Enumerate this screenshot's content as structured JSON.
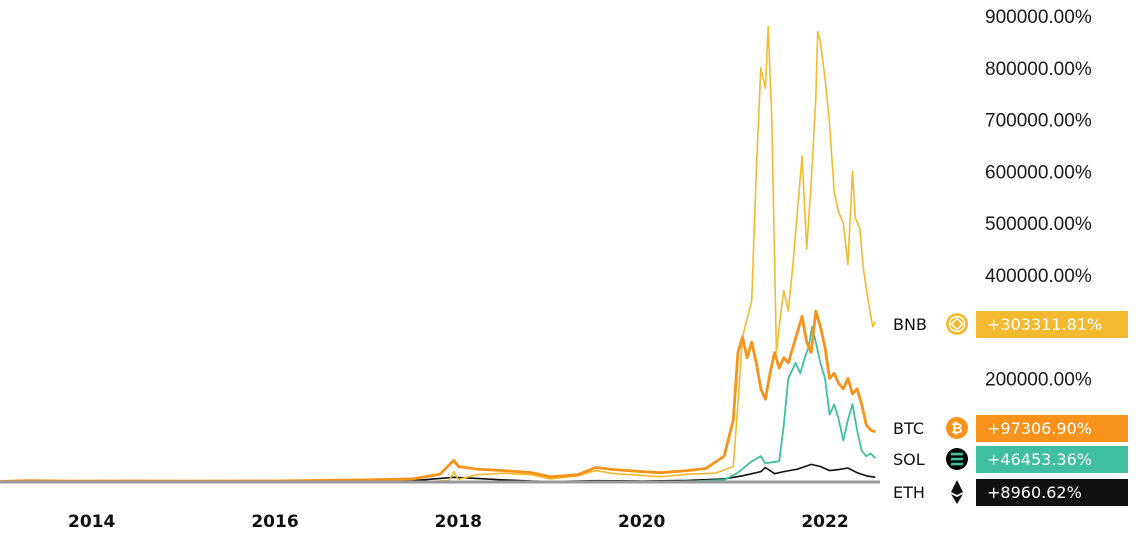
{
  "chart_data": {
    "type": "line",
    "title": "",
    "xlabel": "",
    "ylabel": "",
    "x_range": [
      2013.0,
      2022.6
    ],
    "ylim": [
      0,
      900000
    ],
    "y_ticks": [
      "900000.00%",
      "800000.00%",
      "700000.00%",
      "600000.00%",
      "500000.00%",
      "400000.00%",
      "200000.00%"
    ],
    "y_tick_values": [
      900000,
      800000,
      700000,
      600000,
      500000,
      400000,
      200000
    ],
    "x_ticks": [
      "2014",
      "2016",
      "2018",
      "2020",
      "2022"
    ],
    "x_tick_values": [
      2014,
      2016,
      2018,
      2020,
      2022
    ],
    "grid": false,
    "baseline_color": "#999999",
    "series": [
      {
        "name": "BNB",
        "color": "#f3ba2f",
        "icon": "bnb-icon",
        "end_label": "+303311.81%",
        "points": [
          [
            2017.6,
            0
          ],
          [
            2017.9,
            3000
          ],
          [
            2017.95,
            20000
          ],
          [
            2018.0,
            5000
          ],
          [
            2018.2,
            14000
          ],
          [
            2018.5,
            17000
          ],
          [
            2018.8,
            14000
          ],
          [
            2019.0,
            6000
          ],
          [
            2019.3,
            12000
          ],
          [
            2019.5,
            22000
          ],
          [
            2019.7,
            16000
          ],
          [
            2020.0,
            13000
          ],
          [
            2020.2,
            10000
          ],
          [
            2020.5,
            15000
          ],
          [
            2020.8,
            17000
          ],
          [
            2021.0,
            30000
          ],
          [
            2021.05,
            150000
          ],
          [
            2021.1,
            280000
          ],
          [
            2021.2,
            350000
          ],
          [
            2021.25,
            600000
          ],
          [
            2021.3,
            800000
          ],
          [
            2021.35,
            760000
          ],
          [
            2021.38,
            880000
          ],
          [
            2021.42,
            700000
          ],
          [
            2021.47,
            250000
          ],
          [
            2021.5,
            300000
          ],
          [
            2021.55,
            370000
          ],
          [
            2021.6,
            330000
          ],
          [
            2021.65,
            420000
          ],
          [
            2021.75,
            630000
          ],
          [
            2021.8,
            450000
          ],
          [
            2021.85,
            580000
          ],
          [
            2021.9,
            740000
          ],
          [
            2021.92,
            870000
          ],
          [
            2021.95,
            850000
          ],
          [
            2022.0,
            780000
          ],
          [
            2022.05,
            690000
          ],
          [
            2022.1,
            560000
          ],
          [
            2022.15,
            520000
          ],
          [
            2022.2,
            500000
          ],
          [
            2022.25,
            420000
          ],
          [
            2022.3,
            600000
          ],
          [
            2022.33,
            510000
          ],
          [
            2022.38,
            490000
          ],
          [
            2022.42,
            410000
          ],
          [
            2022.48,
            340000
          ],
          [
            2022.52,
            300000
          ],
          [
            2022.55,
            310000
          ]
        ]
      },
      {
        "name": "BTC",
        "color": "#f7931a",
        "icon": "btc-icon",
        "end_label": "+97306.90%",
        "points": [
          [
            2013.0,
            1000
          ],
          [
            2013.3,
            2500
          ],
          [
            2013.8,
            1500
          ],
          [
            2014.5,
            2000
          ],
          [
            2015.0,
            1500
          ],
          [
            2016.0,
            2000
          ],
          [
            2016.5,
            3000
          ],
          [
            2017.0,
            4000
          ],
          [
            2017.5,
            6000
          ],
          [
            2017.8,
            15000
          ],
          [
            2017.95,
            42000
          ],
          [
            2018.0,
            30000
          ],
          [
            2018.2,
            25000
          ],
          [
            2018.5,
            22000
          ],
          [
            2018.8,
            18000
          ],
          [
            2019.0,
            10000
          ],
          [
            2019.3,
            14000
          ],
          [
            2019.5,
            28000
          ],
          [
            2019.7,
            24000
          ],
          [
            2020.0,
            20000
          ],
          [
            2020.2,
            18000
          ],
          [
            2020.5,
            22000
          ],
          [
            2020.7,
            26000
          ],
          [
            2020.9,
            50000
          ],
          [
            2021.0,
            120000
          ],
          [
            2021.05,
            250000
          ],
          [
            2021.1,
            280000
          ],
          [
            2021.15,
            240000
          ],
          [
            2021.2,
            270000
          ],
          [
            2021.25,
            230000
          ],
          [
            2021.3,
            180000
          ],
          [
            2021.35,
            160000
          ],
          [
            2021.4,
            210000
          ],
          [
            2021.45,
            250000
          ],
          [
            2021.5,
            220000
          ],
          [
            2021.55,
            240000
          ],
          [
            2021.6,
            230000
          ],
          [
            2021.65,
            260000
          ],
          [
            2021.7,
            290000
          ],
          [
            2021.75,
            320000
          ],
          [
            2021.8,
            270000
          ],
          [
            2021.85,
            250000
          ],
          [
            2021.9,
            330000
          ],
          [
            2021.95,
            300000
          ],
          [
            2022.0,
            260000
          ],
          [
            2022.05,
            200000
          ],
          [
            2022.1,
            210000
          ],
          [
            2022.15,
            190000
          ],
          [
            2022.2,
            180000
          ],
          [
            2022.25,
            200000
          ],
          [
            2022.3,
            170000
          ],
          [
            2022.35,
            180000
          ],
          [
            2022.4,
            150000
          ],
          [
            2022.45,
            110000
          ],
          [
            2022.5,
            100000
          ],
          [
            2022.55,
            97000
          ]
        ]
      },
      {
        "name": "SOL",
        "color": "#3fbf9f",
        "icon": "sol-icon",
        "end_label": "+46453.36%",
        "points": [
          [
            2020.3,
            1000
          ],
          [
            2020.6,
            1500
          ],
          [
            2020.9,
            4000
          ],
          [
            2021.05,
            18000
          ],
          [
            2021.2,
            40000
          ],
          [
            2021.3,
            50000
          ],
          [
            2021.35,
            36000
          ],
          [
            2021.42,
            38000
          ],
          [
            2021.5,
            40000
          ],
          [
            2021.55,
            110000
          ],
          [
            2021.6,
            200000
          ],
          [
            2021.68,
            230000
          ],
          [
            2021.73,
            210000
          ],
          [
            2021.78,
            240000
          ],
          [
            2021.82,
            260000
          ],
          [
            2021.86,
            300000
          ],
          [
            2021.9,
            270000
          ],
          [
            2021.95,
            230000
          ],
          [
            2022.0,
            200000
          ],
          [
            2022.05,
            130000
          ],
          [
            2022.1,
            150000
          ],
          [
            2022.15,
            120000
          ],
          [
            2022.2,
            80000
          ],
          [
            2022.25,
            120000
          ],
          [
            2022.3,
            150000
          ],
          [
            2022.35,
            100000
          ],
          [
            2022.4,
            60000
          ],
          [
            2022.45,
            50000
          ],
          [
            2022.5,
            55000
          ],
          [
            2022.55,
            46000
          ]
        ]
      },
      {
        "name": "ETH",
        "color": "#111111",
        "icon": "eth-icon",
        "end_label": "+8960.62%",
        "points": [
          [
            2015.6,
            0
          ],
          [
            2016.0,
            200
          ],
          [
            2016.5,
            800
          ],
          [
            2017.0,
            1000
          ],
          [
            2017.5,
            2500
          ],
          [
            2017.95,
            9000
          ],
          [
            2018.2,
            7000
          ],
          [
            2018.5,
            4000
          ],
          [
            2018.8,
            2000
          ],
          [
            2019.0,
            1000
          ],
          [
            2019.5,
            2500
          ],
          [
            2020.0,
            2000
          ],
          [
            2020.5,
            3000
          ],
          [
            2020.9,
            6000
          ],
          [
            2021.1,
            12000
          ],
          [
            2021.3,
            20000
          ],
          [
            2021.35,
            28000
          ],
          [
            2021.45,
            16000
          ],
          [
            2021.55,
            20000
          ],
          [
            2021.7,
            25000
          ],
          [
            2021.85,
            34000
          ],
          [
            2021.95,
            30000
          ],
          [
            2022.05,
            22000
          ],
          [
            2022.15,
            24000
          ],
          [
            2022.25,
            27000
          ],
          [
            2022.35,
            18000
          ],
          [
            2022.45,
            12000
          ],
          [
            2022.55,
            9000
          ]
        ]
      }
    ]
  }
}
